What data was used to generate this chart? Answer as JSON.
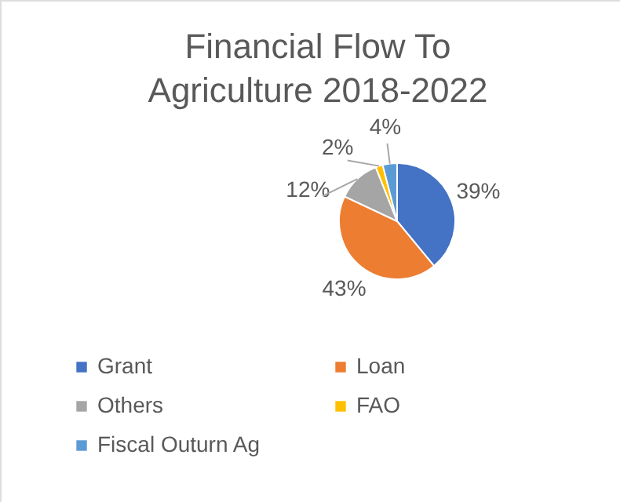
{
  "chart_data": {
    "type": "pie",
    "title": "Financial Flow To Agriculture 2018-2022",
    "categories": [
      "Grant",
      "Loan",
      "Others",
      "FAO",
      "Fiscal Outurn Ag"
    ],
    "values": [
      39,
      43,
      12,
      2,
      4
    ],
    "value_labels": [
      "39%",
      "43%",
      "12%",
      "2%",
      "4%"
    ],
    "colors": [
      "#4472c4",
      "#ed7d31",
      "#a5a5a5",
      "#ffc000",
      "#5b9bd5"
    ],
    "legend": "bottom"
  }
}
